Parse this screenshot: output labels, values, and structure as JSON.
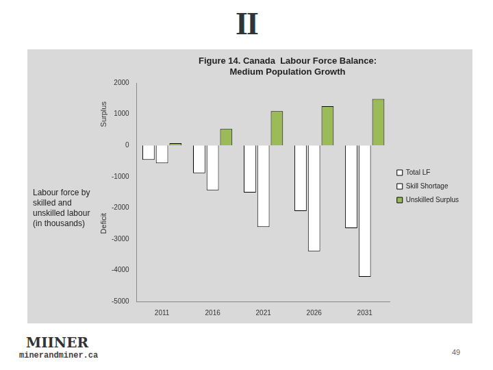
{
  "page": {
    "logo": "II",
    "footer_logo": "MIINER",
    "footer_url": "minerandminer.ca",
    "page_number": "49"
  },
  "chart_data": {
    "type": "bar",
    "title": "Figure 14. Canada  Labour Force Balance: Medium Population Growth",
    "ylabel": "Labour force by skilled and unskilled labour (in thousands)",
    "annotations": [
      "Surplus",
      "Deficit"
    ],
    "categories": [
      "2011",
      "2016",
      "2021",
      "2026",
      "2031"
    ],
    "series": [
      {
        "name": "Total LF",
        "color": "#ffffff",
        "values": [
          -460,
          -890,
          -1510,
          -2100,
          -2650
        ]
      },
      {
        "name": "Skill Shortage",
        "color": "#ffffff",
        "values": [
          -570,
          -1440,
          -2610,
          -3390,
          -4210
        ]
      },
      {
        "name": "Unskilled Surplus",
        "color": "#9bbb59",
        "values": [
          70,
          530,
          1100,
          1260,
          1490
        ]
      }
    ],
    "ylim": [
      -5000,
      2000
    ],
    "yticks": [
      -5000,
      -4000,
      -3000,
      -2000,
      -1000,
      0,
      1000,
      2000
    ],
    "grid": false,
    "legend": "right"
  }
}
